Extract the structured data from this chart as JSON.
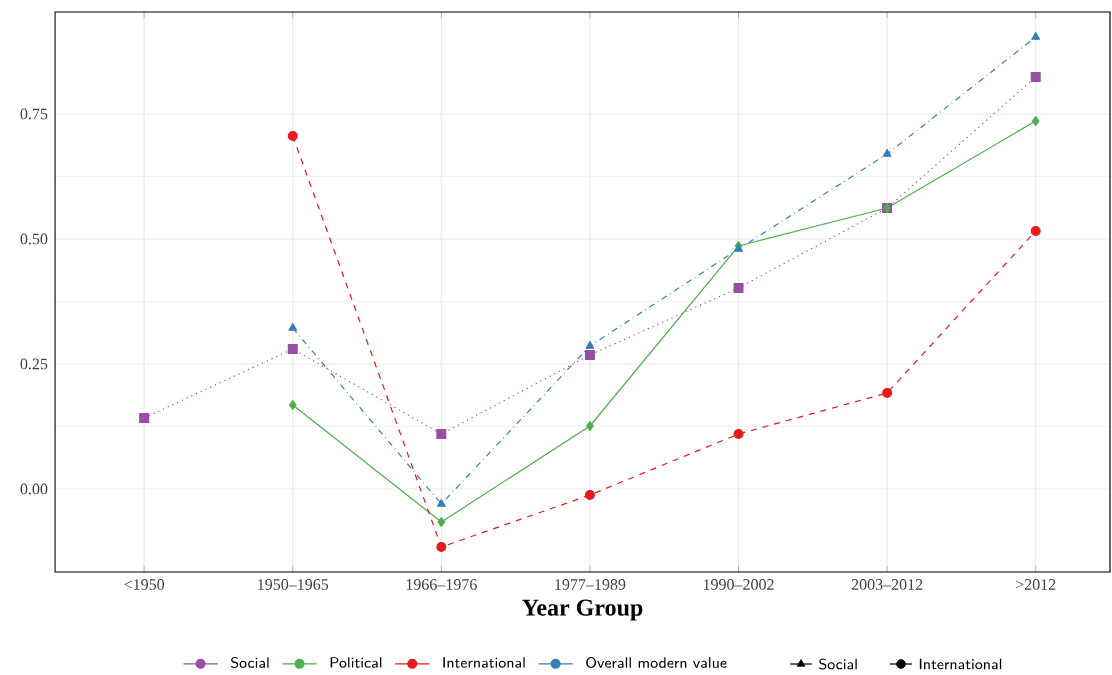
{
  "chart_data": {
    "type": "line",
    "xlabel": "Year Group",
    "categories": [
      "<1950",
      "1950–1965",
      "1966–1976",
      "1977–1989",
      "1990–2002",
      "2003–2012",
      ">2012"
    ],
    "series": [
      {
        "name": "Social",
        "color": "#984ea3",
        "marker": "square",
        "line_style": "dotted",
        "values": [
          0.142,
          0.28,
          0.11,
          0.268,
          0.402,
          0.562,
          0.824
        ]
      },
      {
        "name": "Political",
        "color": "#4daf4a",
        "marker": "diamond",
        "line_style": "solid",
        "values": [
          null,
          0.168,
          -0.066,
          0.126,
          0.486,
          0.562,
          0.736
        ]
      },
      {
        "name": "International",
        "color": "#e41a1c",
        "marker": "circle",
        "line_style": "dashed",
        "values": [
          null,
          0.706,
          -0.116,
          -0.012,
          0.11,
          0.192,
          0.516
        ]
      },
      {
        "name": "Overall modern value",
        "color": "#377eb8",
        "marker": "triangle",
        "line_style": "dashdot",
        "values": [
          null,
          0.322,
          -0.03,
          0.286,
          0.48,
          0.67,
          0.904
        ]
      }
    ],
    "ylim": [
      -0.166,
      0.954
    ],
    "yticks": [
      {
        "value": 0,
        "label": "0.00"
      },
      0.25,
      {
        "value": 0.5,
        "label": "0.50"
      },
      0.75
    ],
    "grid": true,
    "legend": "bottom",
    "annotations": [
      "Social",
      "International"
    ]
  }
}
